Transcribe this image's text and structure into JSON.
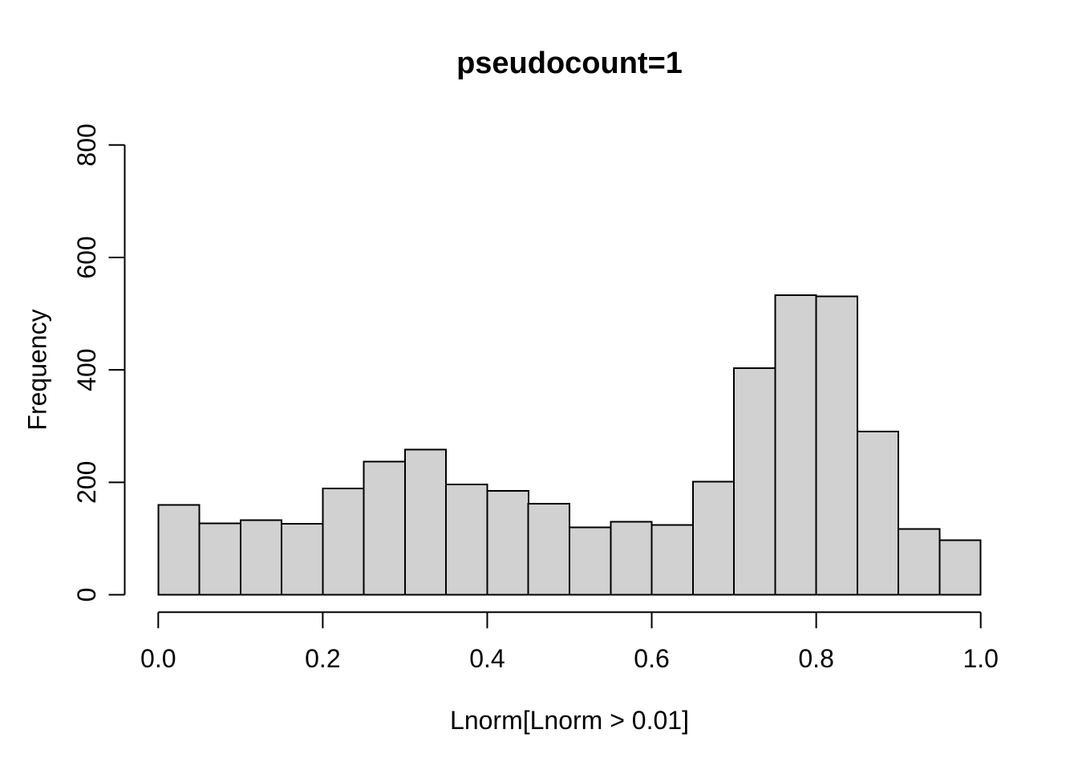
{
  "chart_data": {
    "type": "bar",
    "subtype": "histogram",
    "title": "pseudocount=1",
    "xlabel": "Lnorm[Lnorm > 0.01]",
    "ylabel": "Frequency",
    "xlim": [
      0,
      1
    ],
    "ylim": [
      0,
      800
    ],
    "bin_width": 0.05,
    "bin_edges": [
      0.0,
      0.05,
      0.1,
      0.15,
      0.2,
      0.25,
      0.3,
      0.35,
      0.4,
      0.45,
      0.5,
      0.55,
      0.6,
      0.65,
      0.7,
      0.75,
      0.8,
      0.85,
      0.9,
      0.95,
      1.0
    ],
    "values": [
      160,
      127,
      133,
      126,
      189,
      237,
      258,
      196,
      185,
      162,
      120,
      130,
      124,
      201,
      403,
      533,
      531,
      290,
      117,
      97
    ],
    "x_tick_labels": [
      "0.0",
      "0.2",
      "0.4",
      "0.6",
      "0.8",
      "1.0"
    ],
    "x_tick_values": [
      0.0,
      0.2,
      0.4,
      0.6,
      0.8,
      1.0
    ],
    "y_tick_labels": [
      "0",
      "200",
      "400",
      "600",
      "800"
    ],
    "y_tick_values": [
      0,
      200,
      400,
      600,
      800
    ],
    "grid": false,
    "legend": "none",
    "colors": {
      "bar_fill": "#d1d1d1",
      "bar_stroke": "#000000",
      "axis": "#000000",
      "text": "#000000",
      "background": "#ffffff"
    }
  }
}
